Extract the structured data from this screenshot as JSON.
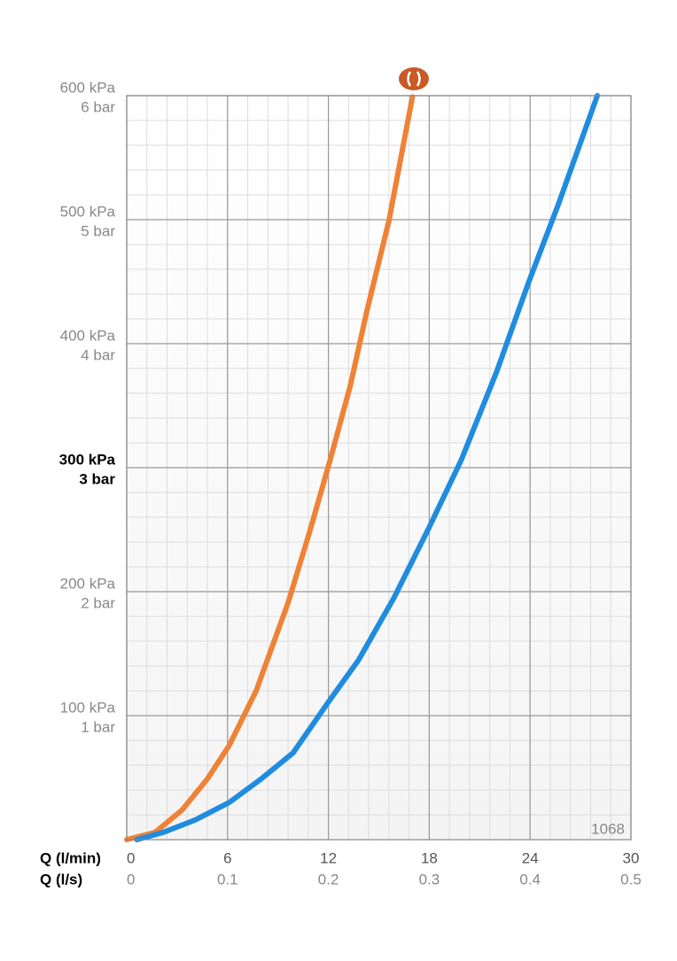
{
  "chart_data": {
    "type": "line",
    "annotation": "1068",
    "xlabel": "Q (l/min)",
    "x2label": "Q (l/s)",
    "xlim": [
      0,
      30
    ],
    "xticks": [
      0,
      6,
      12,
      18,
      24,
      30
    ],
    "x2lim": [
      0,
      0.5
    ],
    "x2ticks": [
      0,
      0.1,
      0.2,
      0.3,
      0.4,
      0.5
    ],
    "ylim": [
      0,
      600
    ],
    "yticks": [
      {
        "value": 100,
        "label": "100 kPa"
      },
      {
        "value": 200,
        "label": "200 kPa"
      },
      {
        "value": 300,
        "label": "300 kPa"
      },
      {
        "value": 400,
        "label": "400 kPa"
      },
      {
        "value": 500,
        "label": "500 kPa"
      },
      {
        "value": 600,
        "label": "600 kPa"
      }
    ],
    "y2lim": [
      0,
      6
    ],
    "y2ticks": [
      {
        "value": 1,
        "label": "1 bar"
      },
      {
        "value": 2,
        "label": "2 bar"
      },
      {
        "value": 3,
        "label": "3 bar"
      },
      {
        "value": 4,
        "label": "4 bar"
      },
      {
        "value": 5,
        "label": "5 bar"
      },
      {
        "value": 6,
        "label": "6 bar"
      }
    ],
    "emphasized_ytick": 300,
    "grid": true,
    "minor_grid": {
      "x": 1.2,
      "y": 20
    },
    "series": [
      {
        "color": "#ef8236",
        "x": [
          0,
          1.7,
          3.3,
          4.8,
          6.1,
          7.7,
          9.6,
          10.9,
          12.1,
          13.3,
          14.3,
          15.6,
          17.0
        ],
        "values": [
          0,
          6,
          24,
          49,
          76,
          120,
          191,
          249,
          306,
          366,
          427,
          499,
          599
        ]
      },
      {
        "color": "#1f8ce0",
        "x": [
          0.6,
          2.2,
          4.1,
          6.1,
          8.0,
          9.9,
          12.0,
          13.8,
          15.9,
          18.0,
          19.9,
          22.0,
          23.9,
          25.7,
          28.0
        ],
        "values": [
          0,
          6,
          16,
          30,
          49,
          70,
          111,
          145,
          195,
          252,
          306,
          377,
          449,
          513,
          600
        ]
      }
    ]
  }
}
